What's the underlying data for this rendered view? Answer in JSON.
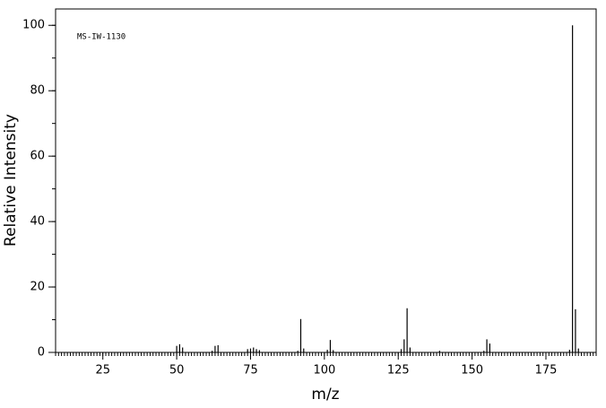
{
  "chart_data": {
    "type": "stem",
    "annotation": "MS-IW-1130",
    "x_label": "m/z",
    "y_label": "Relative Intensity",
    "x": [
      50,
      51,
      52,
      62,
      63,
      64,
      74,
      75,
      76,
      77,
      78,
      91,
      92,
      93,
      101,
      102,
      103,
      126,
      127,
      128,
      129,
      139,
      154,
      155,
      156,
      183,
      184,
      185,
      186
    ],
    "values": [
      2,
      2.5,
      1.5,
      0.5,
      2,
      2.2,
      1,
      1.2,
      1.5,
      1,
      0.7,
      0.5,
      10.2,
      1.2,
      0.8,
      3.8,
      0.7,
      1,
      4,
      13.5,
      1.5,
      0.5,
      0.5,
      4,
      2.7,
      0.8,
      100,
      13.2,
      1.2
    ],
    "color": "#000000",
    "xlim": [
      9,
      192
    ],
    "ylim": [
      0,
      105
    ],
    "xticks": [
      25,
      50,
      75,
      100,
      125,
      150,
      175
    ],
    "yticks": [
      0,
      20,
      40,
      60,
      80,
      100
    ],
    "x_minor_step": 1,
    "y_minor_step": 10
  }
}
